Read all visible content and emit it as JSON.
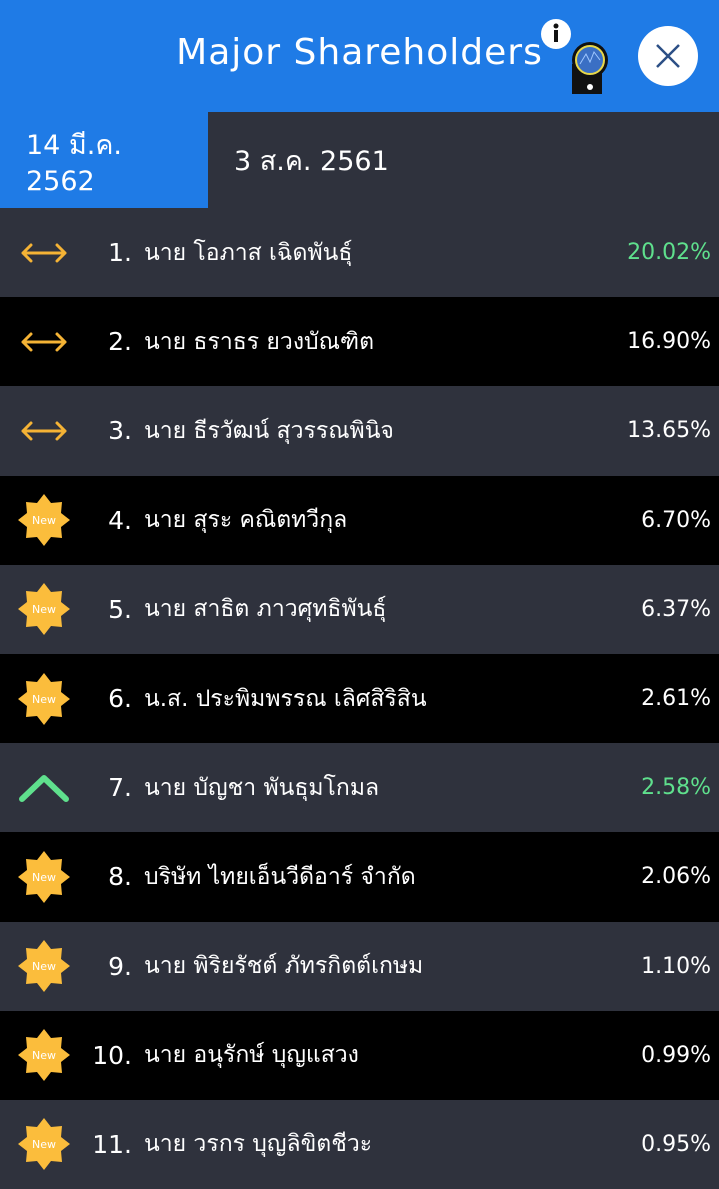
{
  "header": {
    "title": "Major Shareholders"
  },
  "tabs": [
    {
      "label": "14 มี.ค. 2562",
      "active": true
    },
    {
      "label": "3 ส.ค. 2561",
      "active": false
    }
  ],
  "colors": {
    "accent": "#1f7be6",
    "up": "#5fe08d",
    "same": "#f5b335",
    "new": "#fbbd3c"
  },
  "new_badge_label": "New",
  "rows": [
    {
      "rank": "1.",
      "name": "นาย โอภาส เฉิดพันธุ์",
      "percent": "20.02%",
      "status": "same",
      "highlight": true
    },
    {
      "rank": "2.",
      "name": "นาย ธราธร ยวงบัณฑิต",
      "percent": "16.90%",
      "status": "same"
    },
    {
      "rank": "3.",
      "name": "นาย ธีรวัฒน์ สุวรรณพินิจ",
      "percent": "13.65%",
      "status": "same"
    },
    {
      "rank": "4.",
      "name": "นาย สุระ คณิตทวีกุล",
      "percent": "6.70%",
      "status": "new"
    },
    {
      "rank": "5.",
      "name": "นาย สาธิต ภาวศุทธิพันธุ์",
      "percent": "6.37%",
      "status": "new"
    },
    {
      "rank": "6.",
      "name": "น.ส. ประพิมพรรณ เลิศสิริสิน",
      "percent": "2.61%",
      "status": "new"
    },
    {
      "rank": "7.",
      "name": "นาย บัญชา พันธุมโกมล",
      "percent": "2.58%",
      "status": "up",
      "highlight": true
    },
    {
      "rank": "8.",
      "name": "บริษัท  ไทยเอ็นวีดีอาร์ จำกัด",
      "percent": "2.06%",
      "status": "new"
    },
    {
      "rank": "9.",
      "name": "นาย พิริยรัชต์ ภัทรกิตต์เกษม",
      "percent": "1.10%",
      "status": "new"
    },
    {
      "rank": "10.",
      "name": "นาย อนุรักษ์ บุญแสวง",
      "percent": "0.99%",
      "status": "new"
    },
    {
      "rank": "11.",
      "name": "นาย วรกร บุญลิขิตชีวะ",
      "percent": "0.95%",
      "status": "new"
    }
  ]
}
